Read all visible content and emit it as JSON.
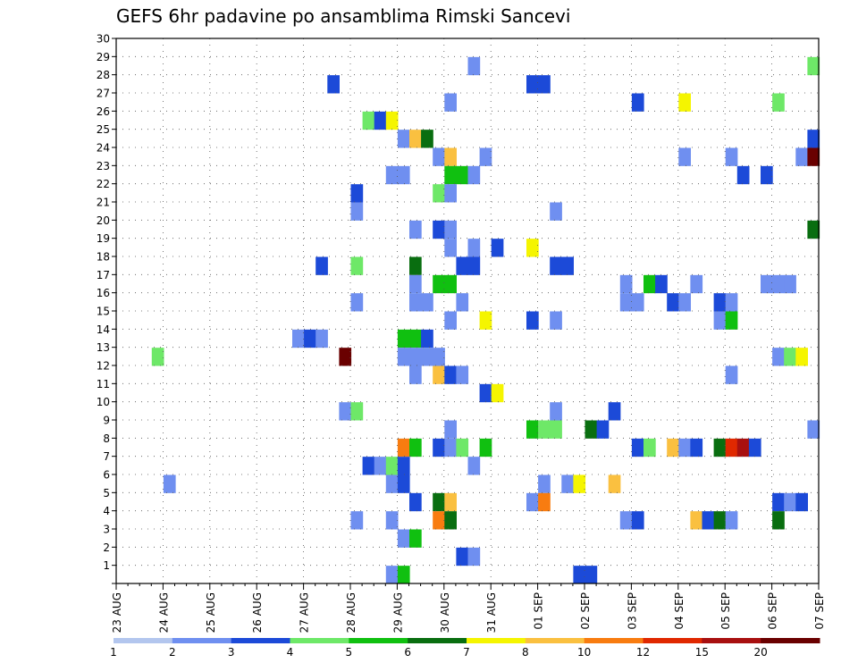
{
  "chart_data": {
    "type": "heatmap",
    "title": "GEFS 6hr padavine po ansamblima Rimski Sancevi",
    "x_tick_labels": [
      "23 AUG",
      "24 AUG",
      "25 AUG",
      "26 AUG",
      "27 AUG",
      "28 AUG",
      "29 AUG",
      "30 AUG",
      "31 AUG",
      "01 SEP",
      "02 SEP",
      "03 SEP",
      "04 SEP",
      "05 SEP",
      "06 SEP",
      "07 SEP"
    ],
    "y_tick_labels": [
      "1",
      "2",
      "3",
      "4",
      "5",
      "6",
      "7",
      "8",
      "9",
      "10",
      "11",
      "12",
      "13",
      "14",
      "15",
      "16",
      "17",
      "18",
      "19",
      "20",
      "21",
      "22",
      "23",
      "24",
      "25",
      "26",
      "27",
      "28",
      "29",
      "30"
    ],
    "y_range": [
      0,
      30
    ],
    "x_range_steps": [
      0,
      60
    ],
    "steps_per_day": 4,
    "grid": "dotted",
    "colorbar_labels": [
      "1",
      "2",
      "3",
      "4",
      "5",
      "6",
      "7",
      "8",
      "10",
      "12",
      "15",
      "20"
    ],
    "colorbar_colors": [
      "#b3c6ee",
      "#6f8ff0",
      "#1c4ad8",
      "#6ee868",
      "#10c010",
      "#096e10",
      "#f5f500",
      "#fac040",
      "#f87c10",
      "#e02800",
      "#a81010",
      "#6a0000"
    ],
    "cells": [
      [
        30,
        29,
        1
      ],
      [
        59,
        29,
        3
      ],
      [
        18,
        28,
        2
      ],
      [
        35,
        28,
        2
      ],
      [
        36,
        28,
        2
      ],
      [
        28,
        27,
        1
      ],
      [
        44,
        27,
        2
      ],
      [
        48,
        27,
        6
      ],
      [
        56,
        27,
        3
      ],
      [
        21,
        26,
        3
      ],
      [
        22,
        26,
        2
      ],
      [
        23,
        26,
        6
      ],
      [
        24,
        25,
        1
      ],
      [
        25,
        25,
        7
      ],
      [
        26,
        25,
        5
      ],
      [
        59,
        25,
        2
      ],
      [
        27,
        24,
        1
      ],
      [
        28,
        24,
        7
      ],
      [
        31,
        24,
        1
      ],
      [
        48,
        24,
        1
      ],
      [
        52,
        24,
        1
      ],
      [
        58,
        24,
        1
      ],
      [
        59,
        24,
        11
      ],
      [
        23,
        23,
        1
      ],
      [
        24,
        23,
        1
      ],
      [
        28,
        23,
        4
      ],
      [
        29,
        23,
        4
      ],
      [
        30,
        23,
        1
      ],
      [
        53,
        23,
        2
      ],
      [
        55,
        23,
        2
      ],
      [
        20,
        22,
        2
      ],
      [
        27,
        22,
        3
      ],
      [
        28,
        22,
        1
      ],
      [
        20,
        21,
        1
      ],
      [
        37,
        21,
        1
      ],
      [
        25,
        20,
        1
      ],
      [
        27,
        20,
        2
      ],
      [
        28,
        20,
        1
      ],
      [
        59,
        20,
        5
      ],
      [
        28,
        19,
        1
      ],
      [
        30,
        19,
        1
      ],
      [
        32,
        19,
        2
      ],
      [
        35,
        19,
        6
      ],
      [
        17,
        18,
        2
      ],
      [
        20,
        18,
        3
      ],
      [
        25,
        18,
        5
      ],
      [
        29,
        18,
        2
      ],
      [
        30,
        18,
        2
      ],
      [
        37,
        18,
        2
      ],
      [
        38,
        18,
        2
      ],
      [
        25,
        17,
        1
      ],
      [
        27,
        17,
        4
      ],
      [
        28,
        17,
        4
      ],
      [
        43,
        17,
        1
      ],
      [
        45,
        17,
        4
      ],
      [
        46,
        17,
        2
      ],
      [
        49,
        17,
        1
      ],
      [
        55,
        17,
        1
      ],
      [
        56,
        17,
        1
      ],
      [
        57,
        17,
        1
      ],
      [
        20,
        16,
        1
      ],
      [
        25,
        16,
        1
      ],
      [
        26,
        16,
        1
      ],
      [
        29,
        16,
        1
      ],
      [
        43,
        16,
        1
      ],
      [
        44,
        16,
        1
      ],
      [
        47,
        16,
        2
      ],
      [
        48,
        16,
        1
      ],
      [
        51,
        16,
        2
      ],
      [
        52,
        16,
        1
      ],
      [
        28,
        15,
        1
      ],
      [
        31,
        15,
        6
      ],
      [
        35,
        15,
        2
      ],
      [
        37,
        15,
        1
      ],
      [
        51,
        15,
        1
      ],
      [
        52,
        15,
        4
      ],
      [
        15,
        14,
        1
      ],
      [
        16,
        14,
        2
      ],
      [
        17,
        14,
        1
      ],
      [
        24,
        14,
        4
      ],
      [
        25,
        14,
        4
      ],
      [
        26,
        14,
        2
      ],
      [
        3,
        13,
        3
      ],
      [
        19,
        13,
        11
      ],
      [
        24,
        13,
        1
      ],
      [
        25,
        13,
        1
      ],
      [
        26,
        13,
        1
      ],
      [
        27,
        13,
        1
      ],
      [
        56,
        13,
        1
      ],
      [
        57,
        13,
        3
      ],
      [
        58,
        13,
        6
      ],
      [
        25,
        12,
        1
      ],
      [
        27,
        12,
        7
      ],
      [
        28,
        12,
        2
      ],
      [
        29,
        12,
        1
      ],
      [
        52,
        12,
        1
      ],
      [
        31,
        11,
        2
      ],
      [
        32,
        11,
        6
      ],
      [
        19,
        10,
        1
      ],
      [
        20,
        10,
        3
      ],
      [
        37,
        10,
        1
      ],
      [
        42,
        10,
        2
      ],
      [
        28,
        9,
        1
      ],
      [
        35,
        9,
        4
      ],
      [
        36,
        9,
        3
      ],
      [
        37,
        9,
        3
      ],
      [
        40,
        9,
        5
      ],
      [
        41,
        9,
        2
      ],
      [
        59,
        9,
        1
      ],
      [
        24,
        8,
        8
      ],
      [
        25,
        8,
        4
      ],
      [
        27,
        8,
        2
      ],
      [
        28,
        8,
        1
      ],
      [
        29,
        8,
        3
      ],
      [
        31,
        8,
        4
      ],
      [
        44,
        8,
        2
      ],
      [
        45,
        8,
        3
      ],
      [
        47,
        8,
        7
      ],
      [
        48,
        8,
        1
      ],
      [
        49,
        8,
        2
      ],
      [
        51,
        8,
        5
      ],
      [
        52,
        8,
        9
      ],
      [
        53,
        8,
        10
      ],
      [
        54,
        8,
        2
      ],
      [
        21,
        7,
        2
      ],
      [
        22,
        7,
        1
      ],
      [
        23,
        7,
        3
      ],
      [
        24,
        7,
        2
      ],
      [
        30,
        7,
        1
      ],
      [
        4,
        6,
        1
      ],
      [
        23,
        6,
        1
      ],
      [
        24,
        6,
        2
      ],
      [
        36,
        6,
        1
      ],
      [
        38,
        6,
        1
      ],
      [
        39,
        6,
        6
      ],
      [
        42,
        6,
        7
      ],
      [
        25,
        5,
        2
      ],
      [
        27,
        5,
        5
      ],
      [
        28,
        5,
        7
      ],
      [
        35,
        5,
        1
      ],
      [
        36,
        5,
        8
      ],
      [
        56,
        5,
        2
      ],
      [
        57,
        5,
        1
      ],
      [
        58,
        5,
        2
      ],
      [
        20,
        4,
        1
      ],
      [
        23,
        4,
        1
      ],
      [
        27,
        4,
        8
      ],
      [
        28,
        4,
        5
      ],
      [
        43,
        4,
        1
      ],
      [
        44,
        4,
        2
      ],
      [
        49,
        4,
        7
      ],
      [
        50,
        4,
        2
      ],
      [
        51,
        4,
        5
      ],
      [
        52,
        4,
        1
      ],
      [
        56,
        4,
        5
      ],
      [
        24,
        3,
        1
      ],
      [
        25,
        3,
        4
      ],
      [
        29,
        2,
        2
      ],
      [
        30,
        2,
        1
      ],
      [
        23,
        1,
        1
      ],
      [
        24,
        1,
        4
      ],
      [
        39,
        1,
        2
      ],
      [
        40,
        1,
        2
      ]
    ]
  }
}
